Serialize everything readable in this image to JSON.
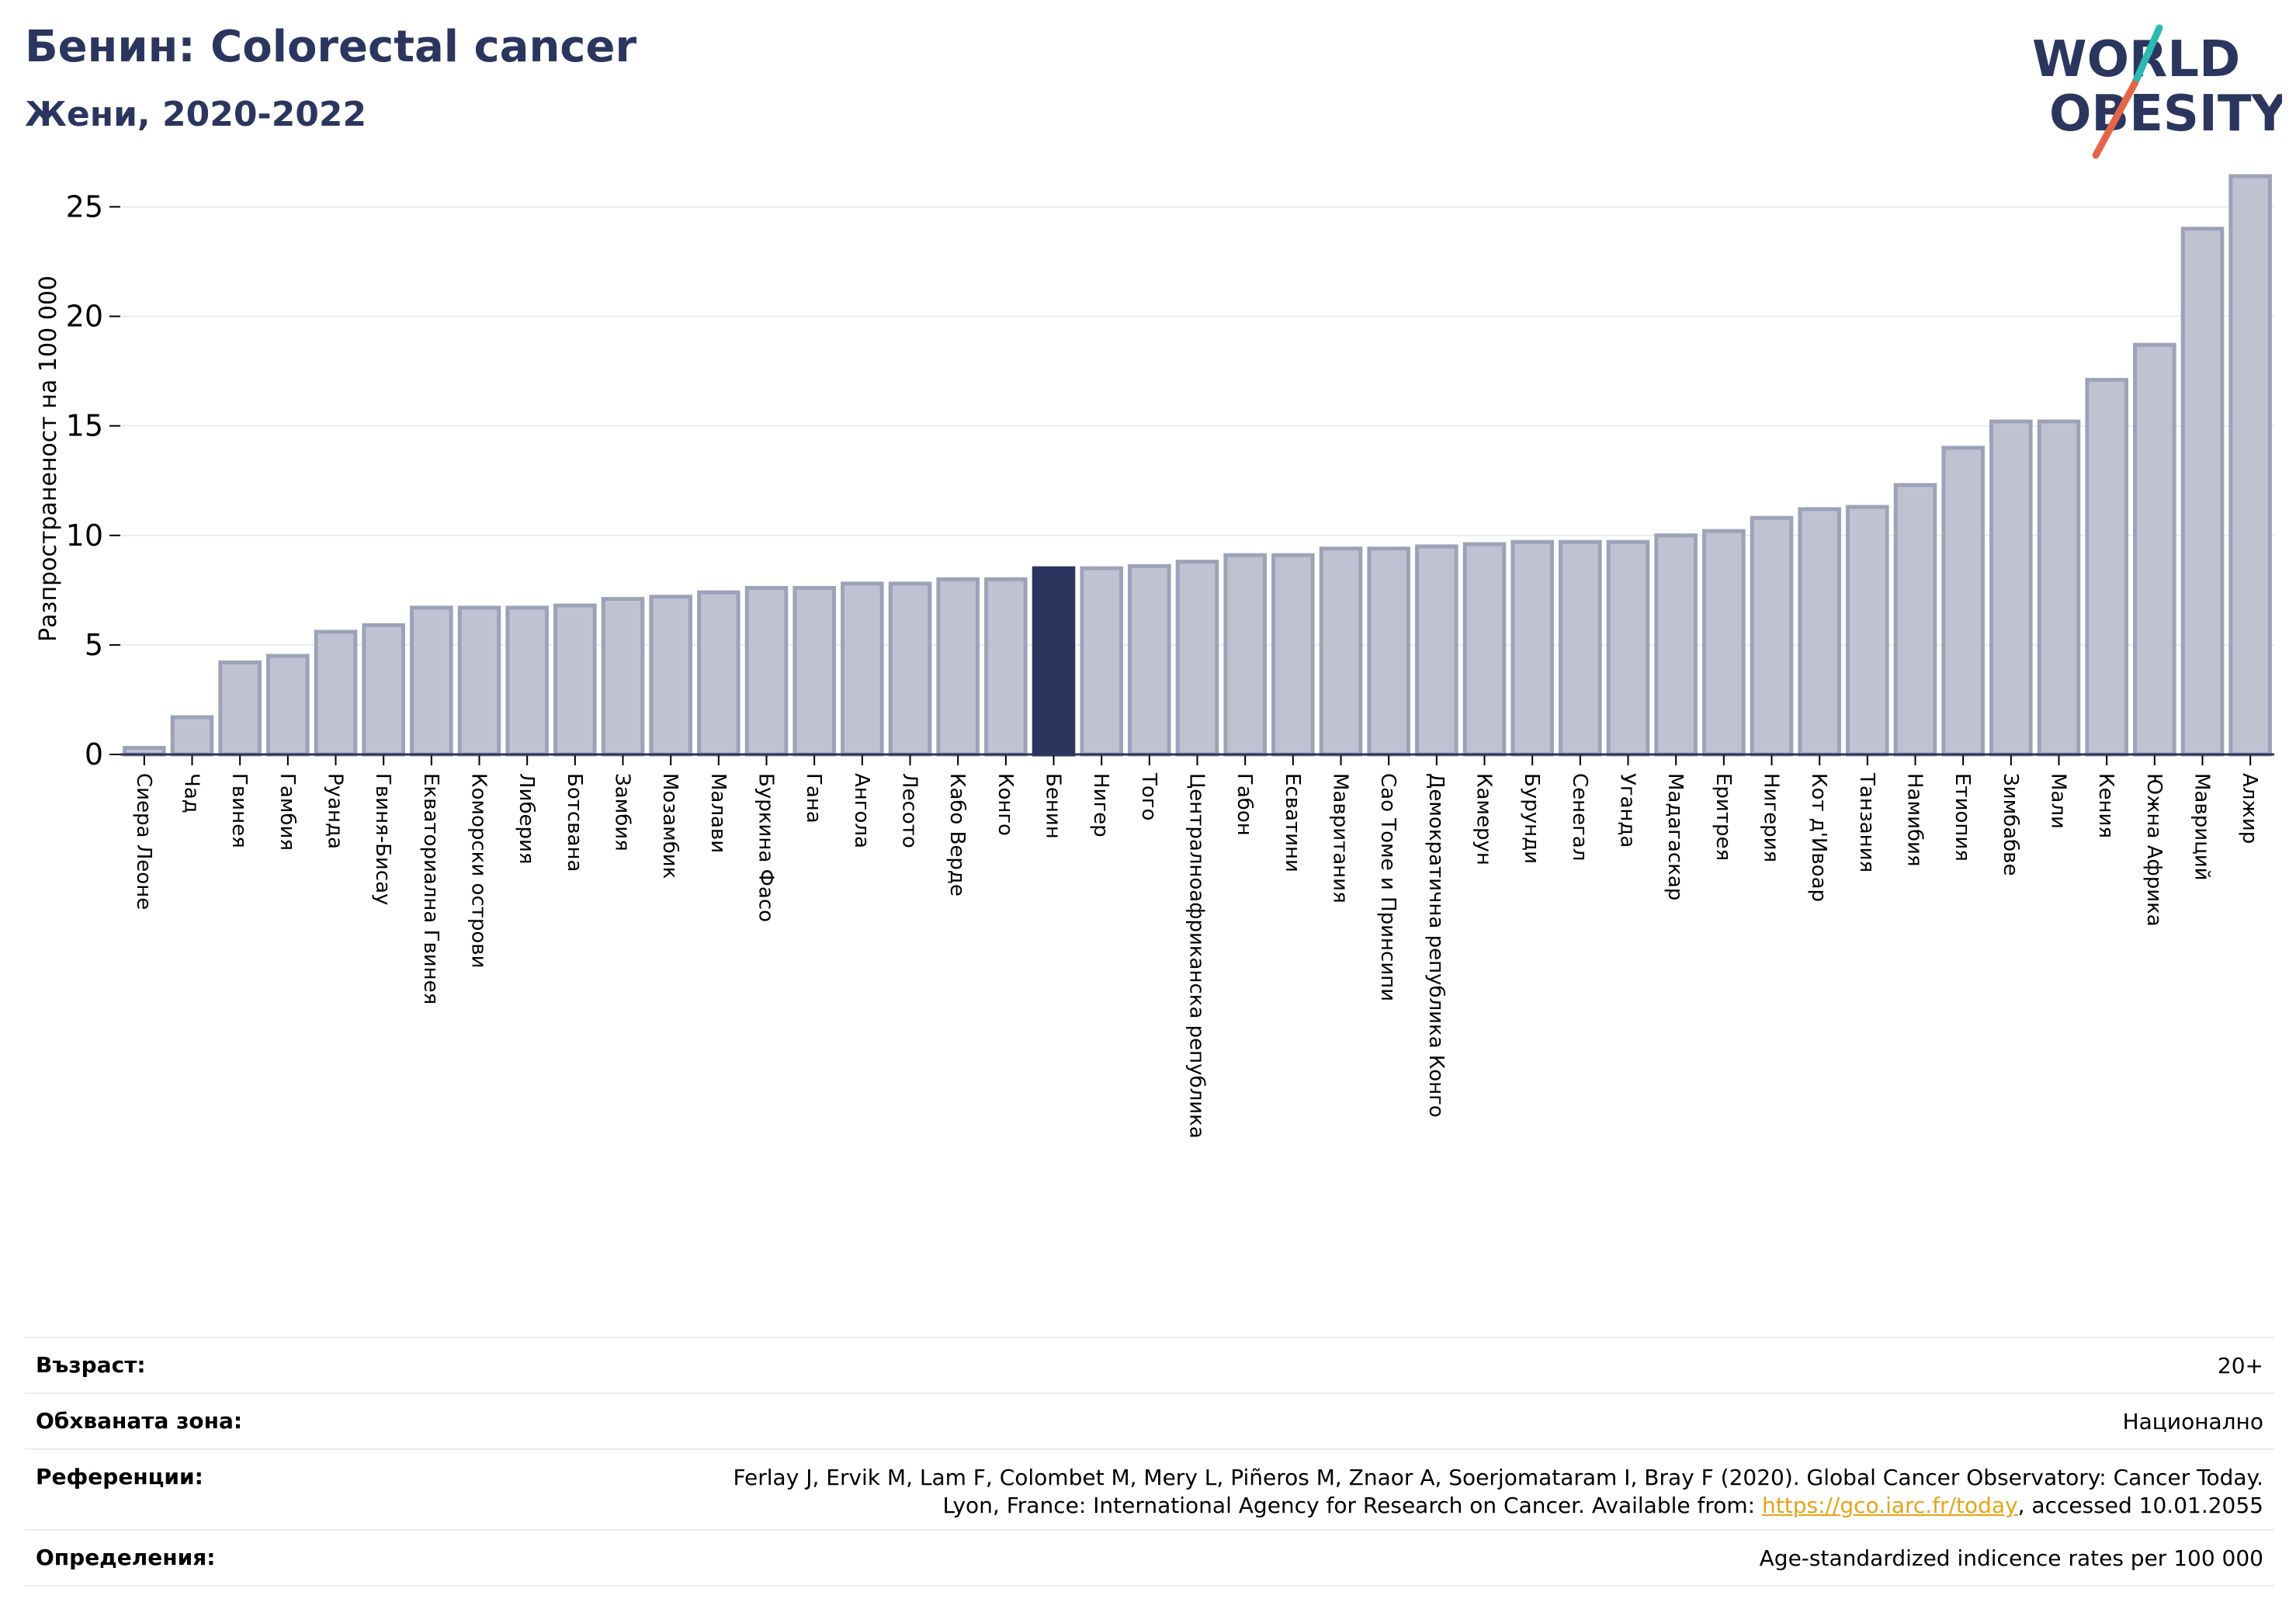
{
  "header": {
    "title": "Бенин: Colorectal cancer",
    "subtitle": "Жени, 2020-2022"
  },
  "logo": {
    "line1": "WORLD",
    "line2": "OBESITY",
    "icon": "world-obesity-logo"
  },
  "colors": {
    "bar": "#bfc2d1",
    "bar_edge": "#9da2b8",
    "highlight": "#2b365f",
    "grid": "#e9ebf1",
    "text": "#2b365f",
    "logo_teal": "#2bb9b0",
    "logo_orange": "#e5654a"
  },
  "chart_data": {
    "type": "bar",
    "title": "Бенин: Colorectal cancer",
    "subtitle": "Жени, 2020-2022",
    "ylabel": "Разпространеност  на 100 000",
    "xlabel": "",
    "ylim": [
      0,
      27
    ],
    "yticks": [
      0,
      5,
      10,
      15,
      20,
      25
    ],
    "grid": true,
    "highlight": "Бенин",
    "categories": [
      "Сиера Леоне",
      "Чад",
      "Гвинея",
      "Гамбия",
      "Руанда",
      "Гвиня-Бисау",
      "Екваториална Гвинея",
      "Коморски острови",
      "Либерия",
      "Ботсвана",
      "Замбия",
      "Мозамбик",
      "Малави",
      "Буркина Фасо",
      "Гана",
      "Ангола",
      "Лесото",
      "Кабо Верде",
      "Конго",
      "Бенин",
      "Нигер",
      "Того",
      "Централноафриканска република",
      "Габон",
      "Есватини",
      "Мавритания",
      "Сао Томе и Принсипи",
      "Демократична република Конго",
      "Камерун",
      "Бурунди",
      "Сенегал",
      "Уганда",
      "Мадагаскар",
      "Еритрея",
      "Нигерия",
      "Кот д'Ивоар",
      "Танзания",
      "Намибия",
      "Етиопия",
      "Зимбабве",
      "Мали",
      "Кения",
      "Южна Африка",
      "Мавриций",
      "Алжир"
    ],
    "values": [
      0.3,
      1.7,
      4.2,
      4.5,
      5.6,
      5.9,
      6.7,
      6.7,
      6.7,
      6.8,
      7.1,
      7.2,
      7.4,
      7.6,
      7.6,
      7.8,
      7.8,
      8.0,
      8.0,
      8.5,
      8.5,
      8.6,
      8.8,
      9.1,
      9.1,
      9.4,
      9.4,
      9.5,
      9.6,
      9.7,
      9.7,
      9.7,
      10.0,
      10.2,
      10.8,
      11.2,
      11.3,
      12.3,
      14.0,
      15.2,
      15.2,
      17.1,
      18.7,
      24.0,
      26.4
    ]
  },
  "meta": {
    "age_label": "Възраст:",
    "age_value": "20+",
    "area_label": "Обхваната зона:",
    "area_value": "Национално",
    "ref_label": "Референции:",
    "ref_line1": "Ferlay J, Ervik M, Lam F, Colombet M, Mery L, Piñeros M, Znaor A, Soerjomataram I, Bray F (2020). Global Cancer Observatory: Cancer Today.",
    "ref_line2_pre": "Lyon, France: International Agency for Research on Cancer. Available from: ",
    "ref_link": "https://gco.iarc.fr/today",
    "ref_line2_post": ", accessed 10.01.2055",
    "def_label": "Определения:",
    "def_value": "Age-standardized indicence rates per 100 000"
  }
}
